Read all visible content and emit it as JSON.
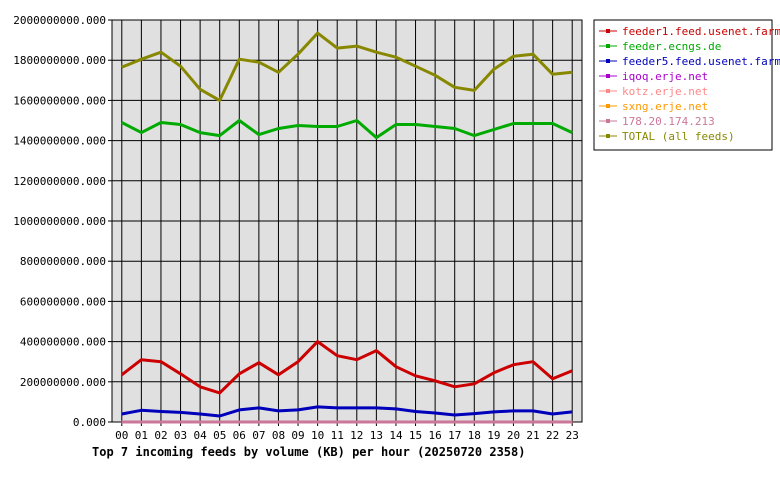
{
  "chart_data": {
    "type": "line",
    "title": "Top 7 incoming feeds by volume (KB) per hour (20250720 2358)",
    "xlabel": "",
    "ylabel": "",
    "ylim": [
      0,
      2000000000
    ],
    "y_ticks": [
      "0.000",
      "200000000.000",
      "400000000.000",
      "600000000.000",
      "800000000.000",
      "1000000000.000",
      "1200000000.000",
      "1400000000.000",
      "1600000000.000",
      "1800000000.000",
      "2000000000.000"
    ],
    "y_tick_values": [
      0,
      200000000,
      400000000,
      600000000,
      800000000,
      1000000000,
      1200000000,
      1400000000,
      1600000000,
      1800000000,
      2000000000
    ],
    "categories": [
      "00",
      "01",
      "02",
      "03",
      "04",
      "05",
      "06",
      "07",
      "08",
      "09",
      "10",
      "11",
      "12",
      "13",
      "14",
      "15",
      "16",
      "17",
      "18",
      "19",
      "20",
      "21",
      "22",
      "23"
    ],
    "grid": true,
    "legend_position": "right",
    "series": [
      {
        "name": "feeder1.feed.usenet.farm",
        "color": "#cc0000",
        "values": [
          235000000,
          310000000,
          300000000,
          240000000,
          175000000,
          145000000,
          240000000,
          295000000,
          235000000,
          300000000,
          400000000,
          330000000,
          310000000,
          355000000,
          275000000,
          230000000,
          205000000,
          175000000,
          190000000,
          245000000,
          285000000,
          300000000,
          215000000,
          255000000
        ]
      },
      {
        "name": "feeder.ecngs.de",
        "color": "#00aa00",
        "values": [
          1490000000,
          1440000000,
          1490000000,
          1480000000,
          1440000000,
          1425000000,
          1500000000,
          1430000000,
          1460000000,
          1475000000,
          1470000000,
          1470000000,
          1500000000,
          1415000000,
          1480000000,
          1480000000,
          1470000000,
          1460000000,
          1425000000,
          1455000000,
          1485000000,
          1485000000,
          1485000000,
          1440000000
        ]
      },
      {
        "name": "feeder5.feed.usenet.farm",
        "color": "#0000bb",
        "values": [
          40000000,
          58000000,
          52000000,
          48000000,
          40000000,
          30000000,
          60000000,
          70000000,
          55000000,
          60000000,
          75000000,
          70000000,
          70000000,
          70000000,
          65000000,
          52000000,
          45000000,
          35000000,
          42000000,
          50000000,
          55000000,
          55000000,
          40000000,
          50000000
        ]
      },
      {
        "name": "iqoq.erje.net",
        "color": "#aa00cc",
        "values": [
          0,
          0,
          0,
          0,
          0,
          0,
          0,
          0,
          0,
          0,
          0,
          0,
          0,
          0,
          0,
          0,
          0,
          0,
          0,
          0,
          0,
          0,
          0,
          0
        ]
      },
      {
        "name": "kotz.erje.net",
        "color": "#ff8888",
        "values": [
          0,
          0,
          0,
          0,
          0,
          0,
          0,
          0,
          0,
          0,
          0,
          0,
          0,
          0,
          0,
          0,
          0,
          0,
          0,
          0,
          0,
          0,
          0,
          0
        ]
      },
      {
        "name": "sxng.erje.net",
        "color": "#ff9900",
        "values": [
          0,
          0,
          0,
          0,
          0,
          0,
          0,
          0,
          0,
          0,
          0,
          0,
          0,
          0,
          0,
          0,
          0,
          0,
          0,
          0,
          0,
          0,
          0,
          0
        ]
      },
      {
        "name": "178.20.174.213",
        "color": "#cc7799",
        "values": [
          0,
          0,
          0,
          0,
          0,
          0,
          0,
          0,
          0,
          0,
          0,
          0,
          0,
          0,
          0,
          0,
          0,
          0,
          0,
          0,
          0,
          0,
          0,
          0
        ]
      },
      {
        "name": "TOTAL (all feeds)",
        "color": "#888800",
        "values": [
          1765000000,
          1805000000,
          1840000000,
          1770000000,
          1655000000,
          1600000000,
          1805000000,
          1790000000,
          1740000000,
          1830000000,
          1935000000,
          1860000000,
          1870000000,
          1840000000,
          1815000000,
          1770000000,
          1725000000,
          1665000000,
          1650000000,
          1755000000,
          1820000000,
          1830000000,
          1730000000,
          1740000000
        ]
      }
    ]
  }
}
